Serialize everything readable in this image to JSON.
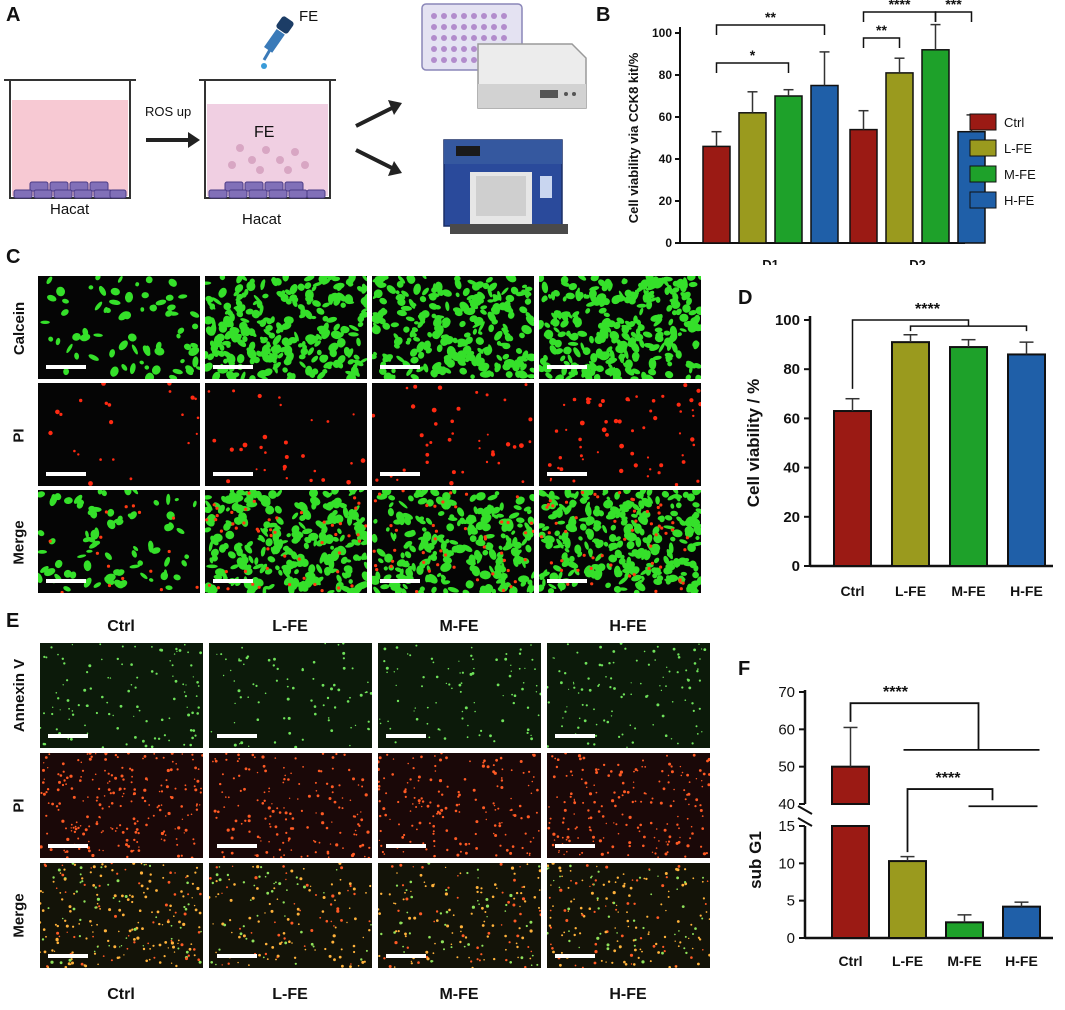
{
  "panels": {
    "a": "A",
    "b": "B",
    "c": "C",
    "d": "D",
    "e": "E",
    "f": "F"
  },
  "schematic": {
    "fe_top": "FE",
    "fe_in_well": "FE",
    "ros_up": "ROS up",
    "hacat_left": "Hacat",
    "hacat_right": "Hacat"
  },
  "colors": {
    "Ctrl": "#9b1a14",
    "L-FE": "#9a9a1e",
    "M-FE": "#1ea12a",
    "H-FE": "#1f5fa8"
  },
  "panelC": {
    "rows": [
      "Calcein",
      "PI",
      "Merge"
    ]
  },
  "panelE": {
    "cols_top": [
      "Ctrl",
      "L-FE",
      "M-FE",
      "H-FE"
    ],
    "cols_bottom": [
      "Ctrl",
      "L-FE",
      "M-FE",
      "H-FE"
    ],
    "rows": [
      "Annexin V",
      "PI",
      "Merge"
    ]
  },
  "chart_data": [
    {
      "id": "B",
      "type": "bar",
      "categories": [
        "D1",
        "D2"
      ],
      "ylabel": "Cell viability via CCK8 kit/%",
      "ylim": [
        0,
        100
      ],
      "yticks": [
        "0",
        "20",
        "40",
        "60",
        "80",
        "100"
      ],
      "legend_position": "right",
      "series": [
        {
          "name": "Ctrl",
          "values": [
            46,
            54
          ],
          "errors": [
            7,
            9
          ]
        },
        {
          "name": "L-FE",
          "values": [
            62,
            81
          ],
          "errors": [
            10,
            7
          ]
        },
        {
          "name": "M-FE",
          "values": [
            70,
            92
          ],
          "errors": [
            3,
            12
          ]
        },
        {
          "name": "H-FE",
          "values": [
            75,
            53
          ],
          "errors": [
            16,
            8
          ]
        }
      ],
      "significance": [
        "*",
        "**",
        "**",
        "****",
        "***"
      ]
    },
    {
      "id": "D",
      "type": "bar",
      "categories": [
        "Ctrl",
        "L-FE",
        "M-FE",
        "H-FE"
      ],
      "values": [
        63,
        91,
        89,
        86
      ],
      "errors": [
        5,
        3,
        3,
        5
      ],
      "ylabel": "Cell viability / %",
      "ylim": [
        0,
        100
      ],
      "yticks": [
        "0",
        "20",
        "40",
        "60",
        "80",
        "100"
      ],
      "significance": [
        "****"
      ]
    },
    {
      "id": "F",
      "type": "bar",
      "categories": [
        "Ctrl",
        "L-FE",
        "M-FE",
        "H-FE"
      ],
      "values": [
        50,
        10.3,
        2.1,
        4.2
      ],
      "errors": [
        10.5,
        0.6,
        1.0,
        0.6
      ],
      "ylabel": "sub G1",
      "yticks_lower": [
        "0",
        "5",
        "10",
        "15"
      ],
      "yticks_upper": [
        "40",
        "50",
        "60",
        "70"
      ],
      "axis_break": [
        15,
        40
      ],
      "significance": [
        "****",
        "****"
      ]
    }
  ]
}
